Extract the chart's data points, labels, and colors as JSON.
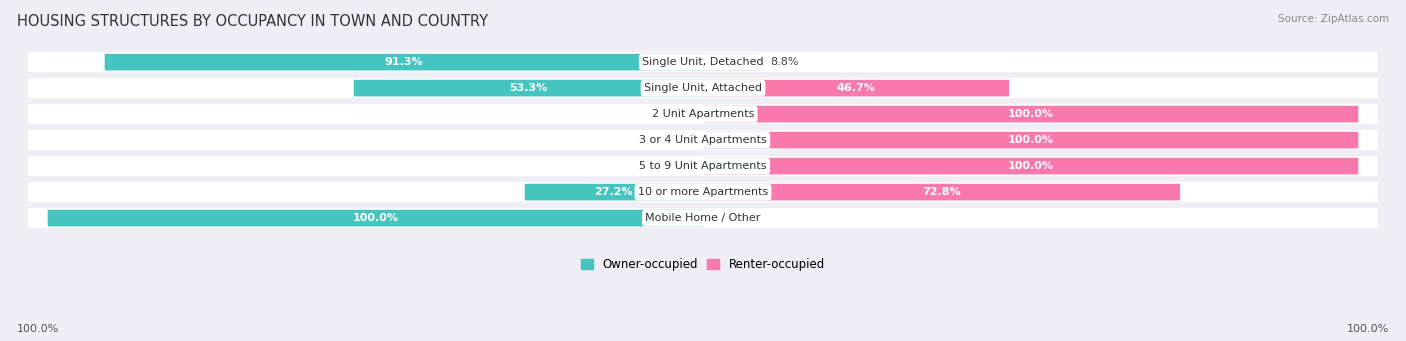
{
  "title": "HOUSING STRUCTURES BY OCCUPANCY IN TOWN AND COUNTRY",
  "source": "Source: ZipAtlas.com",
  "categories": [
    "Single Unit, Detached",
    "Single Unit, Attached",
    "2 Unit Apartments",
    "3 or 4 Unit Apartments",
    "5 to 9 Unit Apartments",
    "10 or more Apartments",
    "Mobile Home / Other"
  ],
  "owner_pct": [
    91.3,
    53.3,
    0.0,
    0.0,
    0.0,
    27.2,
    100.0
  ],
  "renter_pct": [
    8.8,
    46.7,
    100.0,
    100.0,
    100.0,
    72.8,
    0.0
  ],
  "owner_color": "#45c4c0",
  "renter_color": "#f87aac",
  "owner_label": "Owner-occupied",
  "renter_label": "Renter-occupied",
  "bg_color": "#eeeef4",
  "bar_bg_color": "#ffffff",
  "title_fontsize": 10.5,
  "label_fontsize": 8.0,
  "cat_fontsize": 8.0,
  "source_fontsize": 7.5,
  "legend_fontsize": 8.5,
  "bar_height": 0.62,
  "owner_max": 100,
  "renter_max": 100,
  "axis_label_left": "100.0%",
  "axis_label_right": "100.0%"
}
